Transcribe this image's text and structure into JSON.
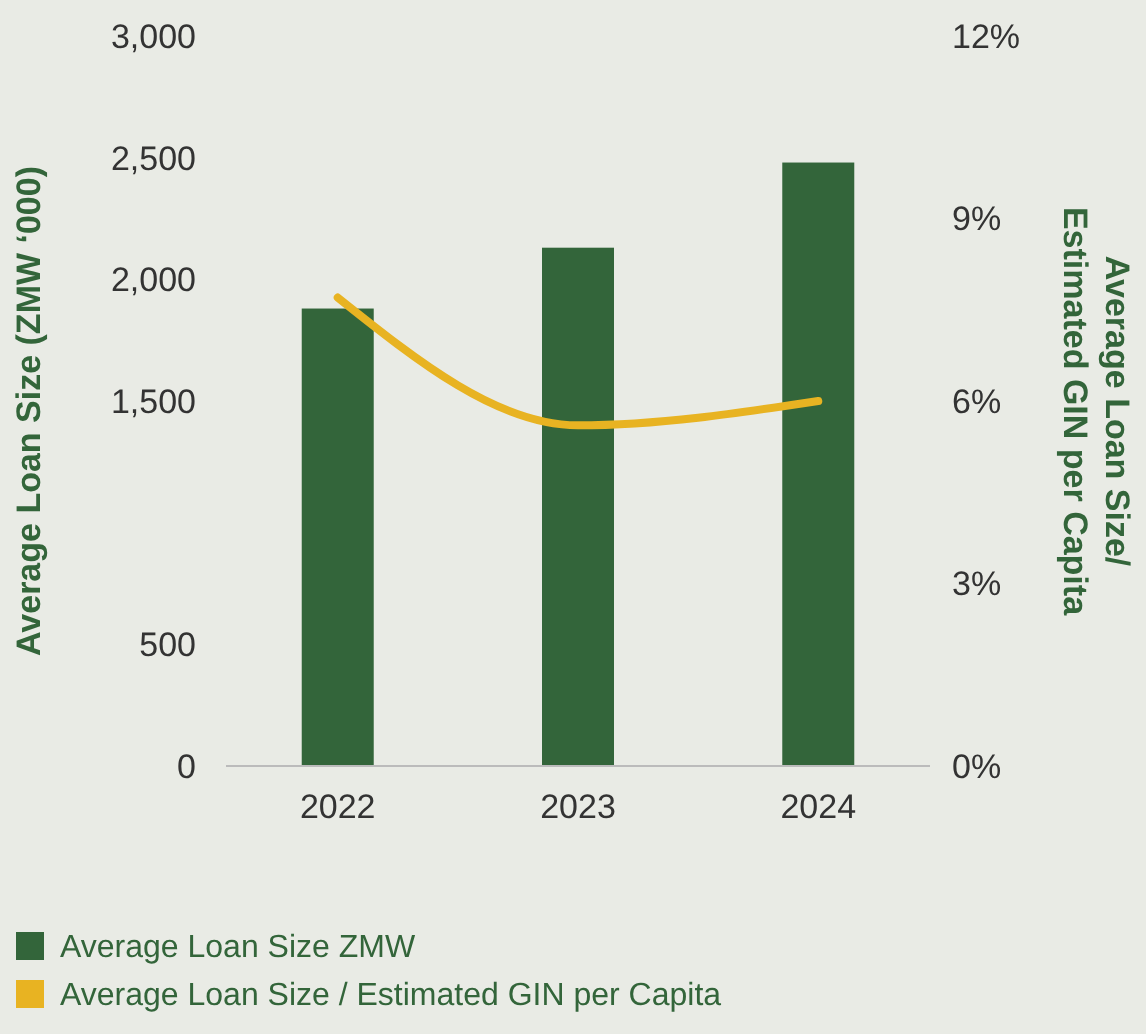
{
  "chart_data": {
    "type": "bar",
    "categories": [
      "2022",
      "2023",
      "2024"
    ],
    "ylabel": "Average Loan Size (ZMW ‘000)",
    "y2label": "Average Loan Size/ Estimated GIN per Capita",
    "ylim": [
      0,
      3000
    ],
    "yticks": [
      0,
      500,
      {
        "value": 1500,
        "label": "1,500"
      },
      {
        "value": 2000,
        "label": "2,000"
      },
      {
        "value": 2500,
        "label": "2,500"
      },
      {
        "value": 3000,
        "label": "3,000"
      }
    ],
    "y2lim": [
      0,
      12
    ],
    "y2ticks": [
      {
        "value": 0,
        "label": "0%"
      },
      {
        "value": 3,
        "label": "3%"
      },
      {
        "value": 6,
        "label": "6%"
      },
      {
        "value": 9,
        "label": "9%"
      },
      {
        "value": 12,
        "label": "12%"
      }
    ],
    "series": [
      {
        "name": "Average Loan Size ZMW",
        "color": "#33653a",
        "values": [
          1880,
          2130,
          2480
        ]
      },
      {
        "name": "Average Loan Size / Estimated GIN per Capita",
        "type": "line",
        "axis": "y2",
        "color": "#e8b322",
        "values": [
          7.7,
          5.6,
          6.0
        ]
      }
    ],
    "legend": "bottom",
    "grid": false
  }
}
